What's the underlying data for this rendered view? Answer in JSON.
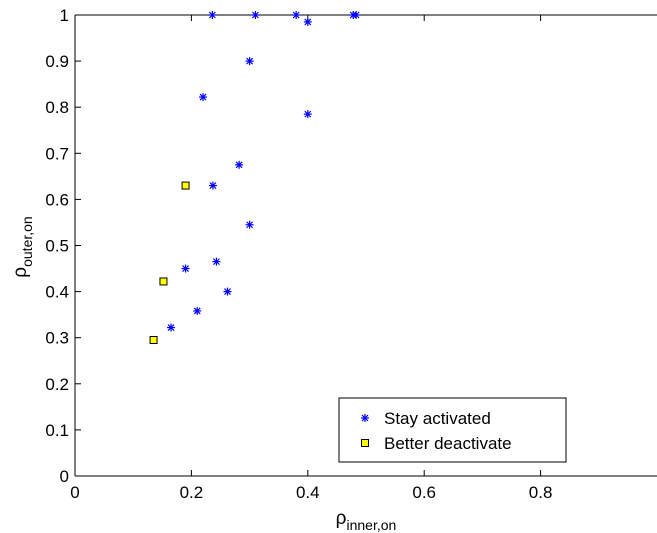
{
  "chart_data": {
    "type": "scatter",
    "title": "",
    "xlabel": {
      "symbol": "ρ",
      "subscript": "inner,on"
    },
    "ylabel": {
      "symbol": "ρ",
      "subscript": "outer,on"
    },
    "xlim": [
      0,
      1
    ],
    "ylim": [
      0,
      1
    ],
    "xticks": [
      0,
      0.2,
      0.4,
      0.6,
      0.8
    ],
    "xtick_labels": [
      "0",
      "0.2",
      "0.4",
      "0.6",
      "0.8"
    ],
    "yticks": [
      0,
      0.1,
      0.2,
      0.3,
      0.4,
      0.5,
      0.6,
      0.7,
      0.8,
      0.9,
      1
    ],
    "ytick_labels": [
      "0",
      "0.1",
      "0.2",
      "0.3",
      "0.4",
      "0.5",
      "0.6",
      "0.7",
      "0.8",
      "0.9",
      "1"
    ],
    "grid": false,
    "legend_position": "bottom-right",
    "series": [
      {
        "name": "Stay activated",
        "marker": "asterisk",
        "color": "#0000ff",
        "points": [
          [
            0.236,
            1.0
          ],
          [
            0.31,
            1.0
          ],
          [
            0.38,
            1.0
          ],
          [
            0.478,
            1.0
          ],
          [
            0.483,
            1.0
          ],
          [
            0.4,
            0.985
          ],
          [
            0.3,
            0.9
          ],
          [
            0.22,
            0.822
          ],
          [
            0.4,
            0.785
          ],
          [
            0.282,
            0.675
          ],
          [
            0.237,
            0.63
          ],
          [
            0.3,
            0.545
          ],
          [
            0.243,
            0.465
          ],
          [
            0.19,
            0.45
          ],
          [
            0.262,
            0.4
          ],
          [
            0.21,
            0.358
          ],
          [
            0.165,
            0.322
          ]
        ]
      },
      {
        "name": "Better deactivate",
        "marker": "square",
        "color": "#ffff00",
        "edge_color": "#000000",
        "points": [
          [
            0.19,
            0.63
          ],
          [
            0.152,
            0.422
          ],
          [
            0.135,
            0.295
          ]
        ]
      }
    ]
  }
}
